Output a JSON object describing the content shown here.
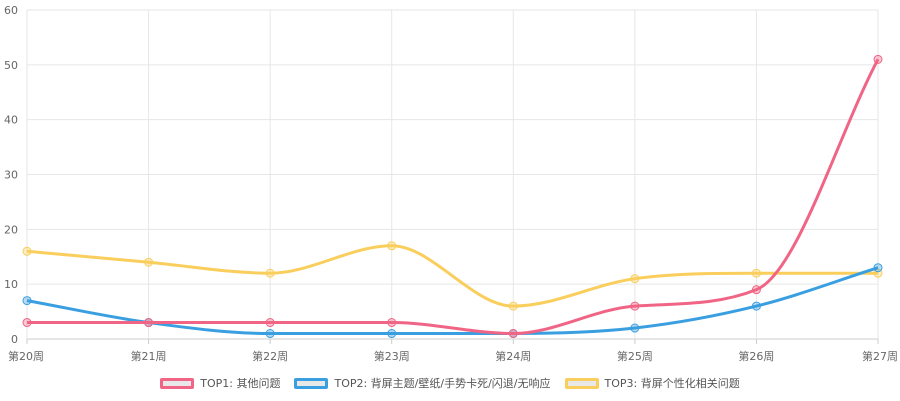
{
  "chart_data": {
    "type": "line",
    "categories": [
      "第20周",
      "第21周",
      "第22周",
      "第23周",
      "第24周",
      "第25周",
      "第26周",
      "第27周"
    ],
    "ylim": [
      0,
      60
    ],
    "yticks": [
      0,
      10,
      20,
      30,
      40,
      50,
      60
    ],
    "grid": true,
    "legend_position": "bottom",
    "series": [
      {
        "name": "TOP1: 其他问题",
        "color": "#f06585",
        "values": [
          3,
          3,
          3,
          3,
          1,
          6,
          9,
          51
        ]
      },
      {
        "name": "TOP2: 背屏主题/壁纸/手势卡死/闪退/无响应",
        "color": "#3a9fe0",
        "values": [
          7,
          3,
          1,
          1,
          1,
          2,
          6,
          13
        ]
      },
      {
        "name": "TOP3: 背屏个性化相关问题",
        "color": "#f9ce5c",
        "values": [
          16,
          14,
          12,
          17,
          6,
          11,
          12,
          12
        ]
      }
    ]
  }
}
